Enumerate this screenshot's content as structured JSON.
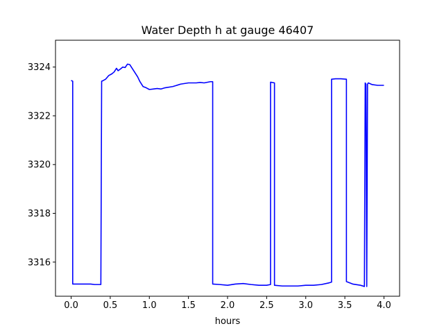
{
  "chart_data": {
    "type": "line",
    "title": "Water Depth h at gauge 46407",
    "xlabel": "hours",
    "ylabel": "",
    "xlim": [
      -0.2,
      4.2
    ],
    "ylim": [
      3314.6,
      3325.1
    ],
    "xticks": [
      0.0,
      0.5,
      1.0,
      1.5,
      2.0,
      2.5,
      3.0,
      3.5,
      4.0
    ],
    "xtick_labels": [
      "0.0",
      "0.5",
      "1.0",
      "1.5",
      "2.0",
      "2.5",
      "3.0",
      "3.5",
      "4.0"
    ],
    "yticks": [
      3316,
      3318,
      3320,
      3322,
      3324
    ],
    "ytick_labels": [
      "3316",
      "3318",
      "3320",
      "3322",
      "3324"
    ],
    "grid": false,
    "series": [
      {
        "color": "#0000ff",
        "x": [
          0.0,
          0.02,
          0.02,
          0.1,
          0.2,
          0.25,
          0.3,
          0.38,
          0.39,
          0.4,
          0.44,
          0.48,
          0.52,
          0.55,
          0.58,
          0.6,
          0.63,
          0.66,
          0.69,
          0.72,
          0.75,
          0.8,
          0.85,
          0.88,
          0.92,
          0.96,
          1.0,
          1.05,
          1.1,
          1.15,
          1.2,
          1.3,
          1.4,
          1.5,
          1.6,
          1.65,
          1.7,
          1.78,
          1.81,
          1.81,
          1.9,
          2.0,
          2.1,
          2.2,
          2.3,
          2.4,
          2.5,
          2.55,
          2.55,
          2.6,
          2.6,
          2.7,
          2.8,
          2.9,
          3.0,
          3.1,
          3.2,
          3.3,
          3.33,
          3.33,
          3.38,
          3.45,
          3.52,
          3.52,
          3.6,
          3.7,
          3.75,
          3.76,
          3.77,
          3.78,
          3.79,
          3.8,
          3.85,
          3.92,
          4.0
        ],
        "y": [
          3323.45,
          3323.42,
          3315.1,
          3315.1,
          3315.1,
          3315.1,
          3315.08,
          3315.08,
          3323.42,
          3323.43,
          3323.5,
          3323.65,
          3323.72,
          3323.8,
          3323.95,
          3323.85,
          3323.92,
          3324.0,
          3323.98,
          3324.12,
          3324.1,
          3323.85,
          3323.6,
          3323.4,
          3323.2,
          3323.15,
          3323.08,
          3323.1,
          3323.12,
          3323.1,
          3323.15,
          3323.2,
          3323.3,
          3323.35,
          3323.35,
          3323.37,
          3323.35,
          3323.4,
          3323.4,
          3315.1,
          3315.08,
          3315.05,
          3315.1,
          3315.12,
          3315.08,
          3315.05,
          3315.05,
          3315.08,
          3323.38,
          3323.35,
          3315.05,
          3315.02,
          3315.02,
          3315.02,
          3315.05,
          3315.05,
          3315.08,
          3315.15,
          3315.18,
          3323.5,
          3323.52,
          3323.52,
          3323.5,
          3315.2,
          3315.1,
          3315.05,
          3315.0,
          3323.35,
          3323.3,
          3315.0,
          3323.3,
          3323.35,
          3323.28,
          3323.25,
          3323.25
        ]
      }
    ]
  }
}
